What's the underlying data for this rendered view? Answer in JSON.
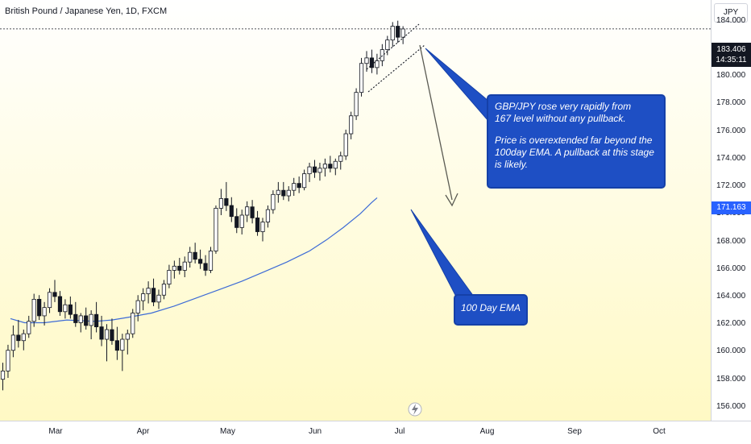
{
  "header": {
    "symbol_title": "British Pound / Japanese Yen, 1D, FXCM",
    "currency": "JPY"
  },
  "price_tags": {
    "last_price": "183.406",
    "countdown": "14:35:11",
    "ema_price": "171.163",
    "last_color": "#131722",
    "ema_color": "#2962ff"
  },
  "annotations": {
    "main_text_1": "GBP/JPY rose very rapidly from\n167 level without any pullback.",
    "main_text_2": "Price is overextended far beyond the\n100day EMA. A pullback at this stage\nis likely.",
    "ema_text": "100 Day EMA",
    "callout_color": "#1e4fc4"
  },
  "icons": {
    "lightning": "lightning-icon"
  },
  "chart_data": {
    "type": "candlestick",
    "title": "British Pound / Japanese Yen, 1D, FXCM",
    "ylim": [
      155,
      185.5
    ],
    "y_ticks": [
      "156.000",
      "158.000",
      "160.000",
      "162.000",
      "164.000",
      "166.000",
      "168.000",
      "170.000",
      "172.000",
      "174.000",
      "176.000",
      "178.000",
      "180.000",
      "182.000",
      "184.000"
    ],
    "x_ticks": [
      "Mar",
      "Apr",
      "May",
      "Jun",
      "Jul",
      "Aug",
      "Sep",
      "Oct"
    ],
    "x_tick_days": [
      16,
      47,
      77,
      108,
      138,
      169,
      200,
      230
    ],
    "background_gradient": [
      "#fff9c4",
      "#ffffff"
    ],
    "up_color": "#ffffff",
    "down_color": "#131722",
    "ema_color": "#3d6bd6",
    "candles": [
      {
        "o": 158.0,
        "h": 159.2,
        "l": 157.2,
        "c": 158.6
      },
      {
        "o": 158.6,
        "h": 160.5,
        "l": 158.1,
        "c": 160.1
      },
      {
        "o": 160.1,
        "h": 161.9,
        "l": 159.6,
        "c": 161.2
      },
      {
        "o": 161.2,
        "h": 162.3,
        "l": 160.3,
        "c": 160.8
      },
      {
        "o": 160.8,
        "h": 161.6,
        "l": 160.1,
        "c": 161.3
      },
      {
        "o": 161.3,
        "h": 162.6,
        "l": 161.0,
        "c": 162.2
      },
      {
        "o": 162.2,
        "h": 164.2,
        "l": 161.8,
        "c": 163.8
      },
      {
        "o": 163.8,
        "h": 164.1,
        "l": 162.3,
        "c": 162.6
      },
      {
        "o": 162.6,
        "h": 163.6,
        "l": 161.9,
        "c": 163.2
      },
      {
        "o": 163.2,
        "h": 164.6,
        "l": 162.8,
        "c": 164.3
      },
      {
        "o": 164.3,
        "h": 165.2,
        "l": 163.6,
        "c": 164.0
      },
      {
        "o": 164.0,
        "h": 164.4,
        "l": 162.6,
        "c": 162.9
      },
      {
        "o": 162.9,
        "h": 163.8,
        "l": 162.4,
        "c": 163.4
      },
      {
        "o": 163.4,
        "h": 164.0,
        "l": 162.4,
        "c": 162.7
      },
      {
        "o": 162.7,
        "h": 163.6,
        "l": 161.8,
        "c": 162.1
      },
      {
        "o": 162.1,
        "h": 162.8,
        "l": 161.4,
        "c": 162.6
      },
      {
        "o": 162.6,
        "h": 163.2,
        "l": 161.6,
        "c": 161.9
      },
      {
        "o": 161.9,
        "h": 163.0,
        "l": 160.9,
        "c": 162.7
      },
      {
        "o": 162.7,
        "h": 163.6,
        "l": 161.4,
        "c": 161.8
      },
      {
        "o": 161.8,
        "h": 162.6,
        "l": 160.4,
        "c": 160.9
      },
      {
        "o": 160.9,
        "h": 162.0,
        "l": 159.3,
        "c": 161.6
      },
      {
        "o": 161.6,
        "h": 162.4,
        "l": 160.5,
        "c": 160.8
      },
      {
        "o": 160.8,
        "h": 161.8,
        "l": 159.4,
        "c": 160.1
      },
      {
        "o": 160.1,
        "h": 161.3,
        "l": 158.6,
        "c": 160.9
      },
      {
        "o": 160.9,
        "h": 161.6,
        "l": 159.8,
        "c": 161.3
      },
      {
        "o": 161.3,
        "h": 163.1,
        "l": 161.0,
        "c": 162.8
      },
      {
        "o": 162.8,
        "h": 164.1,
        "l": 162.2,
        "c": 163.7
      },
      {
        "o": 163.7,
        "h": 164.6,
        "l": 163.0,
        "c": 164.2
      },
      {
        "o": 164.2,
        "h": 165.1,
        "l": 163.5,
        "c": 164.6
      },
      {
        "o": 164.6,
        "h": 165.3,
        "l": 163.3,
        "c": 163.6
      },
      {
        "o": 163.6,
        "h": 164.5,
        "l": 163.1,
        "c": 164.1
      },
      {
        "o": 164.1,
        "h": 165.2,
        "l": 163.8,
        "c": 164.9
      },
      {
        "o": 164.9,
        "h": 166.3,
        "l": 164.6,
        "c": 165.9
      },
      {
        "o": 165.9,
        "h": 166.6,
        "l": 165.3,
        "c": 166.2
      },
      {
        "o": 166.2,
        "h": 166.8,
        "l": 165.6,
        "c": 165.9
      },
      {
        "o": 165.9,
        "h": 166.9,
        "l": 165.4,
        "c": 166.5
      },
      {
        "o": 166.5,
        "h": 167.6,
        "l": 166.1,
        "c": 167.2
      },
      {
        "o": 167.2,
        "h": 167.9,
        "l": 166.4,
        "c": 166.7
      },
      {
        "o": 166.7,
        "h": 167.4,
        "l": 166.0,
        "c": 166.4
      },
      {
        "o": 166.4,
        "h": 167.0,
        "l": 165.5,
        "c": 165.9
      },
      {
        "o": 165.9,
        "h": 167.6,
        "l": 165.7,
        "c": 167.3
      },
      {
        "o": 167.3,
        "h": 170.6,
        "l": 167.1,
        "c": 170.4
      },
      {
        "o": 170.4,
        "h": 171.8,
        "l": 169.9,
        "c": 171.1
      },
      {
        "o": 171.1,
        "h": 172.3,
        "l": 170.2,
        "c": 170.6
      },
      {
        "o": 170.6,
        "h": 171.2,
        "l": 169.4,
        "c": 169.8
      },
      {
        "o": 169.8,
        "h": 170.4,
        "l": 168.6,
        "c": 169.0
      },
      {
        "o": 169.0,
        "h": 170.3,
        "l": 168.5,
        "c": 169.9
      },
      {
        "o": 169.9,
        "h": 170.9,
        "l": 169.4,
        "c": 170.5
      },
      {
        "o": 170.5,
        "h": 171.0,
        "l": 169.3,
        "c": 169.7
      },
      {
        "o": 169.7,
        "h": 170.2,
        "l": 168.4,
        "c": 168.7
      },
      {
        "o": 168.7,
        "h": 169.7,
        "l": 168.0,
        "c": 169.4
      },
      {
        "o": 169.4,
        "h": 170.6,
        "l": 169.0,
        "c": 170.3
      },
      {
        "o": 170.3,
        "h": 171.7,
        "l": 170.0,
        "c": 171.4
      },
      {
        "o": 171.4,
        "h": 172.3,
        "l": 170.8,
        "c": 171.7
      },
      {
        "o": 171.7,
        "h": 172.3,
        "l": 171.0,
        "c": 171.3
      },
      {
        "o": 171.3,
        "h": 172.0,
        "l": 170.9,
        "c": 171.7
      },
      {
        "o": 171.7,
        "h": 172.6,
        "l": 171.3,
        "c": 172.2
      },
      {
        "o": 172.2,
        "h": 172.7,
        "l": 171.5,
        "c": 171.9
      },
      {
        "o": 171.9,
        "h": 173.2,
        "l": 171.7,
        "c": 172.9
      },
      {
        "o": 172.9,
        "h": 173.7,
        "l": 172.3,
        "c": 173.4
      },
      {
        "o": 173.4,
        "h": 173.9,
        "l": 172.6,
        "c": 173.0
      },
      {
        "o": 173.0,
        "h": 173.7,
        "l": 172.4,
        "c": 173.3
      },
      {
        "o": 173.3,
        "h": 174.0,
        "l": 172.7,
        "c": 173.6
      },
      {
        "o": 173.6,
        "h": 174.2,
        "l": 173.0,
        "c": 173.3
      },
      {
        "o": 173.3,
        "h": 174.0,
        "l": 172.8,
        "c": 173.8
      },
      {
        "o": 173.8,
        "h": 174.5,
        "l": 173.2,
        "c": 174.2
      },
      {
        "o": 174.2,
        "h": 176.1,
        "l": 173.9,
        "c": 175.8
      },
      {
        "o": 175.8,
        "h": 177.4,
        "l": 175.4,
        "c": 177.1
      },
      {
        "o": 177.1,
        "h": 179.1,
        "l": 176.8,
        "c": 178.8
      },
      {
        "o": 178.8,
        "h": 181.3,
        "l": 178.5,
        "c": 180.9
      },
      {
        "o": 180.9,
        "h": 181.8,
        "l": 180.3,
        "c": 181.3
      },
      {
        "o": 181.3,
        "h": 181.9,
        "l": 180.2,
        "c": 180.6
      },
      {
        "o": 180.6,
        "h": 181.6,
        "l": 180.1,
        "c": 181.1
      },
      {
        "o": 181.1,
        "h": 182.3,
        "l": 180.7,
        "c": 181.9
      },
      {
        "o": 181.9,
        "h": 182.9,
        "l": 181.5,
        "c": 182.6
      },
      {
        "o": 182.6,
        "h": 183.9,
        "l": 182.1,
        "c": 183.6
      },
      {
        "o": 183.6,
        "h": 184.0,
        "l": 182.4,
        "c": 182.8
      },
      {
        "o": 182.8,
        "h": 183.6,
        "l": 182.3,
        "c": 183.4
      }
    ],
    "ema_100": [
      {
        "d": 0,
        "v": 162.4
      },
      {
        "d": 5,
        "v": 162.1
      },
      {
        "d": 12,
        "v": 162.1
      },
      {
        "d": 20,
        "v": 162.3
      },
      {
        "d": 30,
        "v": 162.2
      },
      {
        "d": 36,
        "v": 162.3
      },
      {
        "d": 42,
        "v": 162.5
      },
      {
        "d": 50,
        "v": 162.8
      },
      {
        "d": 58,
        "v": 163.3
      },
      {
        "d": 66,
        "v": 163.9
      },
      {
        "d": 74,
        "v": 164.5
      },
      {
        "d": 82,
        "v": 165.1
      },
      {
        "d": 90,
        "v": 165.8
      },
      {
        "d": 98,
        "v": 166.5
      },
      {
        "d": 106,
        "v": 167.3
      },
      {
        "d": 112,
        "v": 168.1
      },
      {
        "d": 118,
        "v": 169.0
      },
      {
        "d": 124,
        "v": 170.0
      },
      {
        "d": 128,
        "v": 170.8
      },
      {
        "d": 130,
        "v": 171.16
      }
    ]
  }
}
